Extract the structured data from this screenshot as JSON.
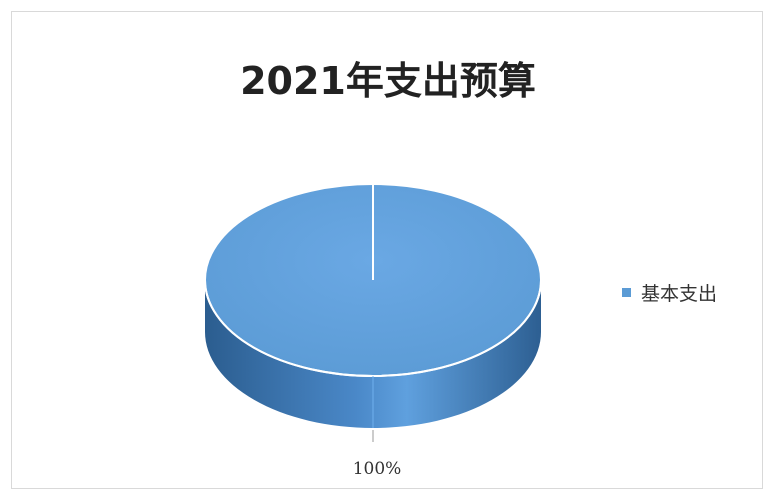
{
  "chart_data": {
    "type": "pie",
    "title": "2021年支出预算",
    "categories": [
      "基本支出"
    ],
    "values": [
      100
    ],
    "data_labels": [
      "100%"
    ],
    "colors": [
      "#5b9bd5"
    ],
    "legend_position": "right",
    "style": "3d"
  }
}
